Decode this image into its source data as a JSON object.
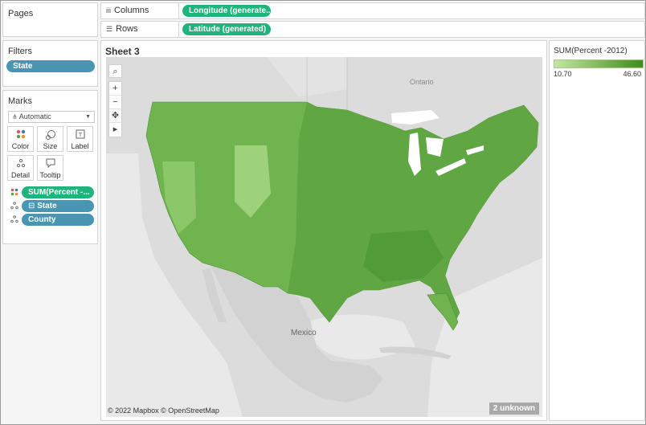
{
  "pages": {
    "title": "Pages"
  },
  "filters": {
    "title": "Filters",
    "items": [
      "State"
    ]
  },
  "marks": {
    "title": "Marks",
    "mark_type": "Automatic",
    "buttons": {
      "color": "Color",
      "size": "Size",
      "label": "Label",
      "detail": "Detail",
      "tooltip": "Tooltip"
    },
    "fields": [
      {
        "label": "SUM(Percent -...",
        "icon": "color-icon",
        "color": "#1eb47b"
      },
      {
        "label": "State",
        "icon": "detail-icon",
        "color": "#4996b2"
      },
      {
        "label": "County",
        "icon": "detail-icon",
        "color": "#4996b2"
      }
    ]
  },
  "shelves": {
    "columns": {
      "label": "Columns",
      "pill": "Longitude (generate.."
    },
    "rows": {
      "label": "Rows",
      "pill": "Latitude (generated)"
    }
  },
  "sheet": {
    "title": "Sheet 3",
    "map_labels": {
      "ontario": "Ontario",
      "mexico": "Mexico"
    },
    "attribution": "© 2022 Mapbox © OpenStreetMap",
    "unknown_badge": "2 unknown"
  },
  "legend": {
    "title": "SUM(Percent -2012)",
    "min": "10.70",
    "max": "46.60",
    "color_low": "#c6e6a2",
    "color_high": "#3e8c1e"
  },
  "colors": {
    "accent_green": "#1eb47b",
    "pill_blue": "#4996b2",
    "map_fill": "#6fb44e"
  }
}
